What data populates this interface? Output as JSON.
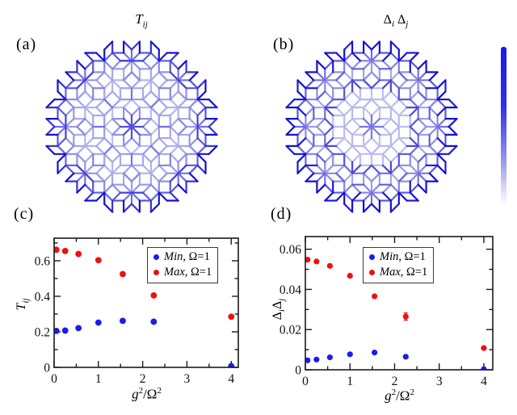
{
  "figure": {
    "background": "#ffffff",
    "panel_labels": {
      "a": "(a)",
      "b": "(b)",
      "c": "(c)",
      "d": "(d)"
    },
    "titles": {
      "a_main": "T",
      "a_sub": "ij",
      "b_d1": "Δ",
      "b_s1": "i",
      "b_d2": "Δ",
      "b_s2": "j"
    },
    "axis_labels": {
      "x_g": "g",
      "x_sup1": "2",
      "x_slash": "/",
      "x_omega": "Ω",
      "x_sup2": "2",
      "c_y_main": "T",
      "c_y_sub": "ij",
      "d_y_d1": "Δ",
      "d_y_s1": "i",
      "d_y_d2": "Δ",
      "d_y_s2": "j"
    },
    "colorbar": {
      "top_color": "#1a1ae4",
      "bottom_color": "#ffffff"
    }
  },
  "tiling": {
    "type": "octagonal-quasicrystal-multigrid",
    "families": 4,
    "lines_range": 8,
    "offsets": [
      0.5,
      0.5,
      0.5,
      0.5
    ],
    "clip_radius": 7.05,
    "edge_color_light": "#d7d7f4",
    "edge_color_dark": "#1412cf",
    "panels": [
      {
        "salt": 3.7
      },
      {
        "salt": 11.3
      }
    ]
  },
  "chart_data": [
    {
      "type": "scatter",
      "panel": "c",
      "title": "",
      "xlabel": "g²/Ω²",
      "ylabel": "T_ij",
      "xlim": [
        0,
        4.16
      ],
      "ylim": [
        0,
        0.727
      ],
      "grid": false,
      "xticks": {
        "major": [
          0,
          1,
          2,
          3,
          4
        ],
        "labels": [
          "0",
          "1",
          "2",
          "3",
          "4"
        ],
        "minor": [
          0.5,
          1.5,
          2.5,
          3.5
        ]
      },
      "yticks": {
        "major": [
          0,
          0.2,
          0.4,
          0.6
        ],
        "labels": [
          "0",
          "0.2",
          "0.4",
          "0.6"
        ],
        "minor": [
          0.1,
          0.3,
          0.5,
          0.7
        ]
      },
      "x": [
        0.05,
        0.25,
        0.55,
        1.0,
        1.55,
        2.25,
        4.0
      ],
      "series": [
        {
          "name": "Min, Ω=1",
          "color": "#1b1bef",
          "values": [
            0.205,
            0.207,
            0.221,
            0.252,
            0.262,
            0.257,
            0.007
          ]
        },
        {
          "name": "Max, Ω=1",
          "color": "#ee1010",
          "values": [
            0.662,
            0.655,
            0.638,
            0.603,
            0.525,
            0.405,
            0.285
          ]
        }
      ],
      "errorbars": [],
      "legend": {
        "position": "top-right",
        "entries": [
          {
            "italic": "Min",
            "rest": ", Ω=1",
            "color": "#1b1bef"
          },
          {
            "italic": "Max",
            "rest": ", Ω=1",
            "color": "#ee1010"
          }
        ]
      }
    },
    {
      "type": "scatter",
      "panel": "d",
      "title": "",
      "xlabel": "g²/Ω²",
      "ylabel": "ΔiΔj",
      "xlim": [
        0,
        4.2
      ],
      "ylim": [
        0,
        0.0663
      ],
      "grid": false,
      "xticks": {
        "major": [
          0,
          1,
          2,
          3,
          4
        ],
        "labels": [
          "0",
          "1",
          "2",
          "3",
          "4"
        ],
        "minor": [
          0.5,
          1.5,
          2.5,
          3.5
        ]
      },
      "yticks": {
        "major": [
          0,
          0.02,
          0.04,
          0.06
        ],
        "labels": [
          "0",
          "0.02",
          "0.04",
          "0.06"
        ],
        "minor": [
          0.01,
          0.03,
          0.05
        ]
      },
      "x": [
        0.05,
        0.25,
        0.55,
        1.0,
        1.55,
        2.25,
        4.0
      ],
      "series": [
        {
          "name": "Min, Ω=1",
          "color": "#1b1bef",
          "values": [
            0.0047,
            0.0051,
            0.0062,
            0.0077,
            0.0086,
            0.0065,
            0.0003
          ]
        },
        {
          "name": "Max, Ω=1",
          "color": "#ee1010",
          "values": [
            0.0548,
            0.0539,
            0.0517,
            0.0468,
            0.0366,
            0.0265,
            0.0108
          ]
        }
      ],
      "errorbars": [
        {
          "series": 1,
          "index": 5,
          "dy": 0.0018
        }
      ],
      "legend": {
        "position": "top-right",
        "entries": [
          {
            "italic": "Min",
            "rest": ", Ω=1",
            "color": "#1b1bef"
          },
          {
            "italic": "Max",
            "rest": ", Ω=1",
            "color": "#ee1010"
          }
        ]
      }
    }
  ]
}
